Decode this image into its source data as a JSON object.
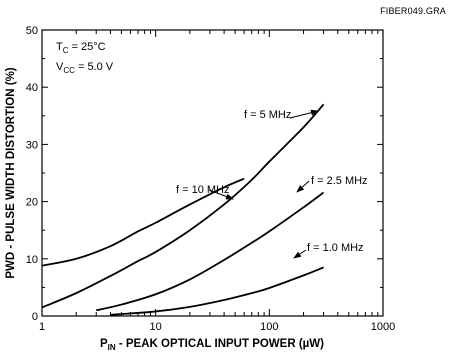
{
  "figure_id": "FIBER049.GRA",
  "conditions": {
    "tc_main": "T",
    "tc_sub": "C",
    "tc_value": " = 25°C",
    "vcc_main": "V",
    "vcc_sub": "CC",
    "vcc_value": " = 5.0 V"
  },
  "axes": {
    "x_title_main": "P",
    "x_title_sub": "IN",
    "x_title_rest": " - PEAK OPTICAL INPUT POWER (µW)",
    "y_title": "PWD - PULSE WIDTH DISTORTION (%)"
  },
  "chart_data": {
    "type": "line",
    "xscale": "log",
    "xlim": [
      1,
      1000
    ],
    "ylim": [
      0,
      50
    ],
    "xticks": [
      1,
      10,
      100,
      1000
    ],
    "xtick_labels": [
      "1",
      "10",
      "100",
      "1000"
    ],
    "yticks": [
      0,
      10,
      20,
      30,
      40,
      50
    ],
    "ytick_labels": [
      "0",
      "10",
      "20",
      "30",
      "40",
      "50"
    ],
    "grid": false,
    "series": [
      {
        "name": "f = 10 MHz",
        "x": [
          1,
          2,
          4,
          7,
          10,
          20,
          40,
          60
        ],
        "y": [
          8.8,
          10.0,
          12.2,
          14.8,
          16.3,
          19.5,
          22.5,
          24.0
        ]
      },
      {
        "name": "f = 5 MHz",
        "x": [
          1,
          2,
          4,
          7,
          10,
          20,
          40,
          70,
          100,
          200,
          300
        ],
        "y": [
          1.5,
          4.0,
          7.0,
          9.6,
          11.2,
          15.0,
          19.5,
          23.8,
          27.0,
          33.0,
          37.0
        ]
      },
      {
        "name": "f = 2.5 MHz",
        "x": [
          3,
          5,
          10,
          20,
          40,
          70,
          100,
          200,
          300
        ],
        "y": [
          1.0,
          2.0,
          3.8,
          6.4,
          9.8,
          12.8,
          14.8,
          19.0,
          21.6
        ]
      },
      {
        "name": "f = 1.0 MHz",
        "x": [
          4,
          10,
          20,
          40,
          70,
          100,
          200,
          300
        ],
        "y": [
          0.2,
          0.8,
          1.6,
          2.8,
          4.0,
          4.9,
          7.1,
          8.5
        ]
      }
    ],
    "annotations": [
      {
        "series": "f = 10 MHz",
        "text": "f = 10 MHz"
      },
      {
        "series": "f = 5 MHz",
        "text": "f = 5 MHz"
      },
      {
        "series": "f = 2.5 MHz",
        "text": "f = 2.5 MHz"
      },
      {
        "series": "f = 1.0 MHz",
        "text": "f = 1.0 MHz"
      }
    ]
  }
}
